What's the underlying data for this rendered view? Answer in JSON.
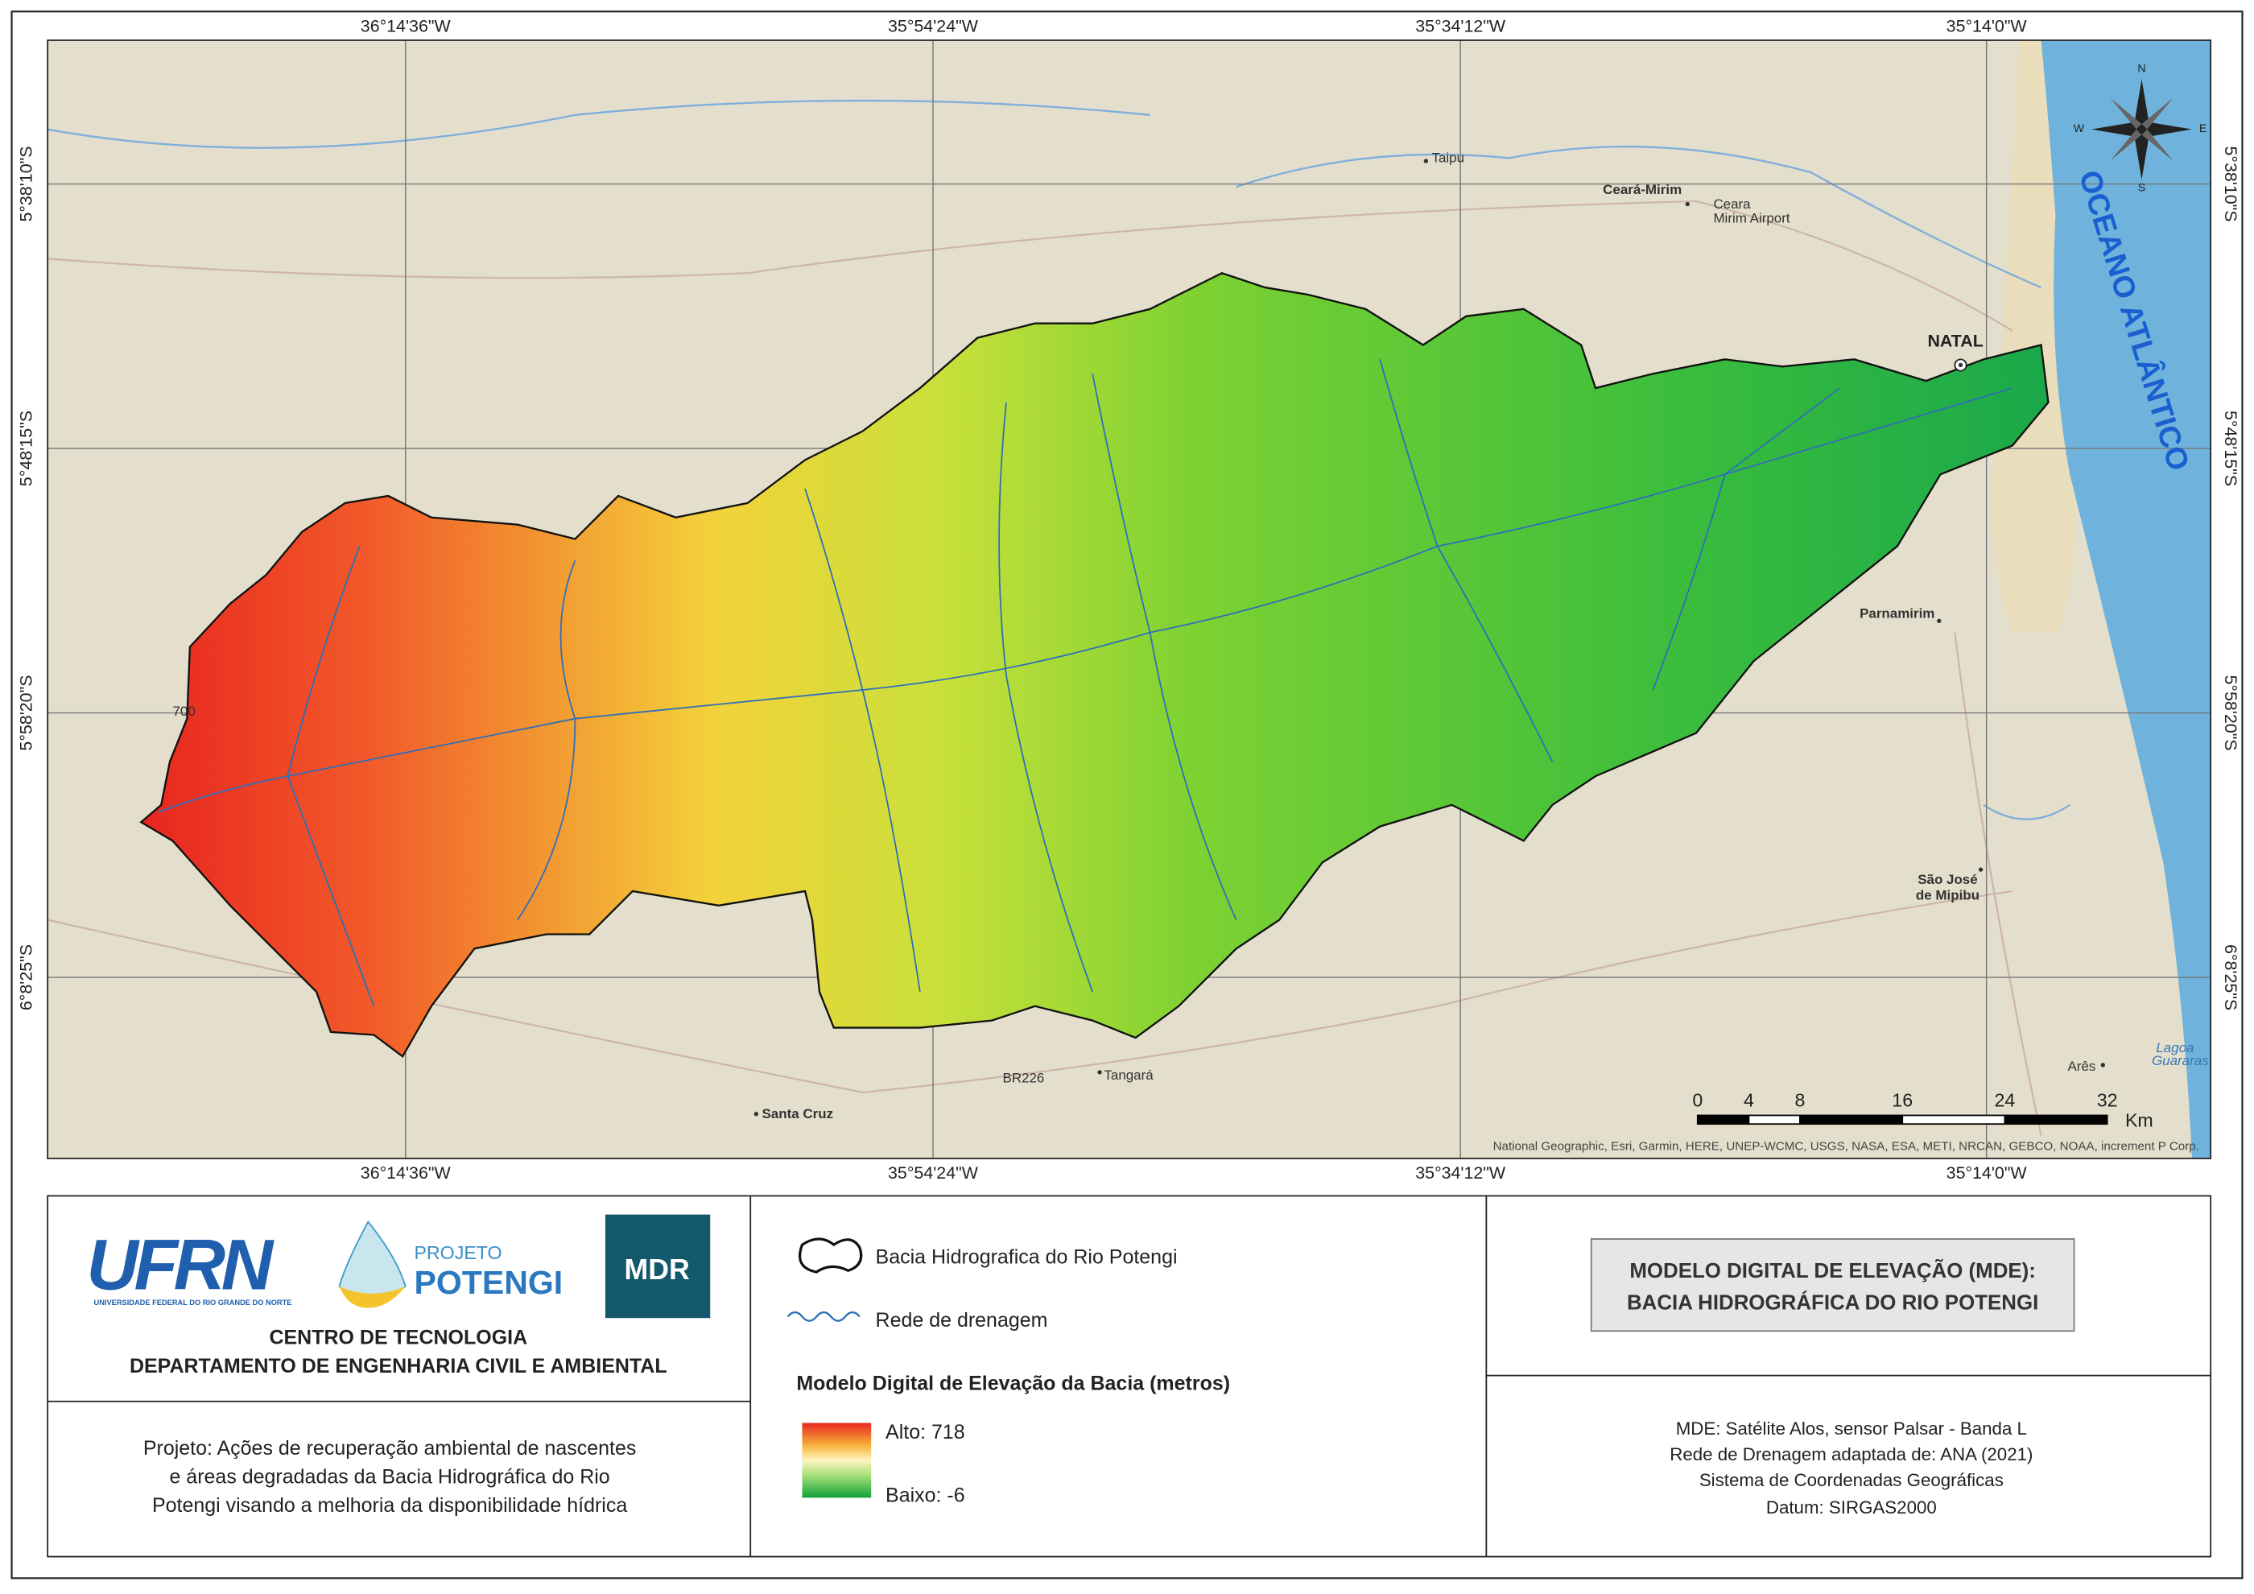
{
  "map": {
    "lon_labels": [
      "36°14'36\"W",
      "35°54'24\"W",
      "35°34'12\"W",
      "35°14'0\"W"
    ],
    "lat_labels": [
      "5°38'10\"S",
      "5°48'15\"S",
      "5°58'20\"S",
      "6°8'25\"S"
    ],
    "ocean_label": "OCEANO ATLÂNTICO",
    "places": [
      "Taipu",
      "Ceará-Mirim",
      "Ceara",
      "Mirim Airport",
      "NATAL",
      "Parnamirim",
      "São José",
      "de Mipibu",
      "Santa Cruz",
      "Tangará",
      "Arês",
      "Lagoa",
      "Guararas",
      "BR226",
      "700"
    ],
    "compass": [
      "N",
      "E",
      "S",
      "W"
    ],
    "scale": {
      "ticks": [
        0,
        4,
        8,
        16,
        24,
        32
      ],
      "unit": "Km"
    },
    "attribution": "National Geographic, Esri, Garmin, HERE, UNEP-WCMC, USGS, NASA, ESA, METI, NRCAN, GEBCO, NOAA, increment P Corp."
  },
  "logos": {
    "ufrn": "UFRN",
    "ufrn_subtitle": "UNIVERSIDADE FEDERAL DO RIO GRANDE DO NORTE",
    "projeto": "PROJETO",
    "potengi": "POTENGI",
    "mdr": "MDR"
  },
  "institution": [
    "CENTRO DE TECNOLOGIA",
    "DEPARTAMENTO DE ENGENHARIA CIVIL E AMBIENTAL"
  ],
  "project": [
    "Projeto: Ações de recuperação ambiental de nascentes",
    "e áreas degradadas da Bacia Hidrográfica do Rio",
    "Potengi visando a melhoria da disponibilidade hídrica"
  ],
  "legend": {
    "basin": "Bacia Hidrografica do Rio Potengi",
    "drainage": "Rede de drenagem",
    "dem_title": "Modelo Digital de Elevação da Bacia (metros)",
    "high": "Alto: 718",
    "low": "Baixo: -6"
  },
  "title": [
    "MODELO DIGITAL DE ELEVAÇÃO (MDE):",
    "BACIA HIDROGRÁFICA DO RIO POTENGI"
  ],
  "info": [
    "MDE: Satélite Alos, sensor Palsar - Banda L",
    "Rede de Drenagem adaptada de: ANA (2021)",
    "Sistema de Coordenadas Geográficas",
    "Datum: SIRGAS2000"
  ]
}
